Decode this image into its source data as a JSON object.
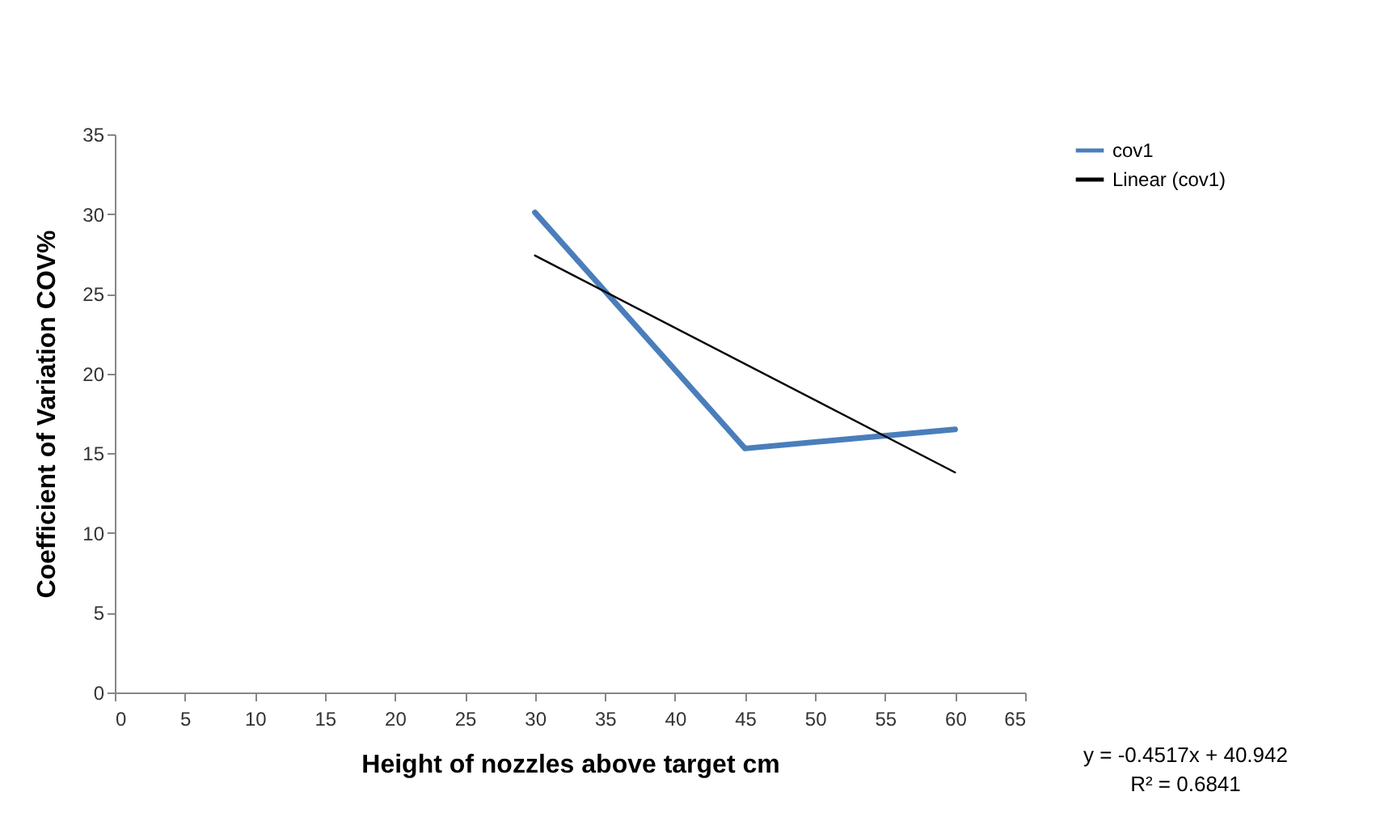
{
  "chart_data": {
    "type": "line",
    "xlabel": "Height of nozzles above target cm",
    "ylabel": "Coefficient of Variation COV%",
    "x": [
      30,
      45,
      60
    ],
    "series": [
      {
        "name": "cov1",
        "color": "#4a7ebb",
        "values": [
          30.1,
          15.3,
          16.5
        ]
      },
      {
        "name": "Linear (cov1)",
        "color": "#000000",
        "type": "line",
        "x": [
          30,
          60
        ],
        "values": [
          27.4,
          13.8
        ]
      }
    ],
    "xlim": [
      0,
      65
    ],
    "xticks": [
      0,
      5,
      10,
      15,
      20,
      25,
      30,
      35,
      40,
      45,
      50,
      55,
      60,
      65
    ],
    "ylim": [
      0,
      35
    ],
    "yticks": [
      0,
      5,
      10,
      15,
      20,
      25,
      30,
      35
    ],
    "grid": false,
    "legend": "right",
    "marker": "none",
    "annotations": [
      "y = -0.4517x + 40.942",
      "R² = 0.6841"
    ]
  }
}
